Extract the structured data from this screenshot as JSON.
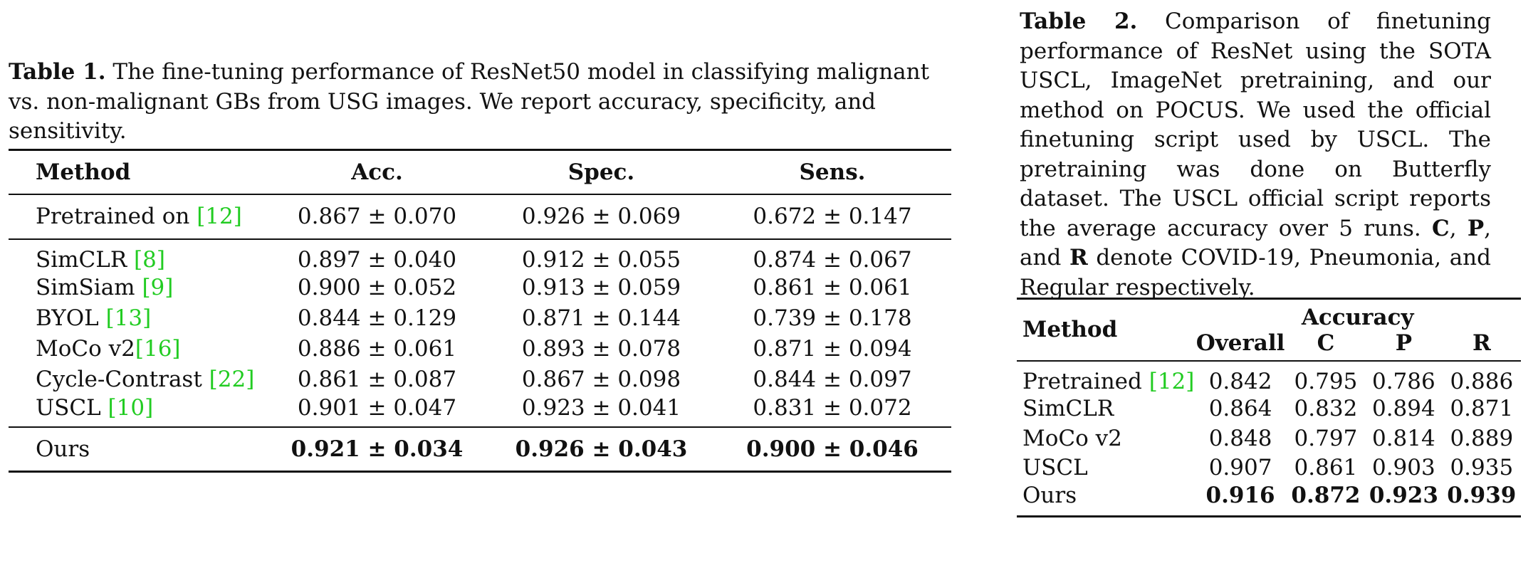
{
  "table1": {
    "caption": {
      "label": "Table 1.",
      "text": "The fine-tuning performance of ResNet50 model in classifying malignant vs. non-malignant GBs from USG images. We report accuracy, specificity, and sensitivity."
    },
    "headers": [
      "Method",
      "Acc.",
      "Spec.",
      "Sens."
    ],
    "pretrained": {
      "method": "Pretrained on ",
      "cite": "[12]",
      "values": [
        "0.867 ± 0.070",
        "0.926 ± 0.069",
        "0.672 ± 0.147"
      ]
    },
    "rows": [
      {
        "method": "SimCLR ",
        "cite": "[8]",
        "values": [
          "0.897 ± 0.040",
          "0.912 ± 0.055",
          "0.874 ± 0.067"
        ]
      },
      {
        "method": "SimSiam ",
        "cite": "[9]",
        "values": [
          "0.900 ± 0.052",
          "0.913 ± 0.059",
          "0.861 ± 0.061"
        ]
      },
      {
        "method": "BYOL ",
        "cite": "[13]",
        "values": [
          "0.844 ± 0.129",
          "0.871 ± 0.144",
          "0.739 ± 0.178"
        ]
      },
      {
        "method": "MoCo v2",
        "cite": "[16]",
        "values": [
          "0.886 ± 0.061",
          "0.893 ± 0.078",
          "0.871 ± 0.094"
        ]
      },
      {
        "method": "Cycle-Contrast ",
        "cite": "[22]",
        "values": [
          "0.861 ± 0.087",
          "0.867 ± 0.098",
          "0.844 ± 0.097"
        ]
      },
      {
        "method": "USCL ",
        "cite": "[10]",
        "values": [
          "0.901 ± 0.047",
          "0.923 ± 0.041",
          "0.831 ± 0.072"
        ]
      }
    ],
    "ours": {
      "method": "Ours",
      "values": [
        "0.921 ± 0.034",
        "0.926 ± 0.043",
        "0.900 ± 0.046"
      ]
    }
  },
  "table2": {
    "caption": {
      "label": "Table 2.",
      "part1": "Comparison of finetuning performance of ResNet using the SOTA USCL, ImageNet pretraining, and our method on POCUS. We used the official finetuning script used by USCL. The pretraining was done on Butterfly dataset. The USCL official script reports the average accuracy over 5 runs.",
      "c": "C",
      "sep1": ", ",
      "p": "P",
      "sep2": ", and ",
      "r": "R",
      "part2": " denote COVID-19, Pneumonia, and Regular respectively."
    },
    "header_method": "Method",
    "header_group": "Accuracy",
    "subheaders": [
      "Overall",
      "C",
      "P",
      "R"
    ],
    "rows": [
      {
        "method": "Pretrained ",
        "cite": "[12]",
        "values": [
          "0.842",
          "0.795",
          "0.786",
          "0.886"
        ]
      },
      {
        "method": "SimCLR",
        "cite": "",
        "values": [
          "0.864",
          "0.832",
          "0.894",
          "0.871"
        ]
      },
      {
        "method": "MoCo v2",
        "cite": "",
        "values": [
          "0.848",
          "0.797",
          "0.814",
          "0.889"
        ]
      },
      {
        "method": "USCL",
        "cite": "",
        "values": [
          "0.907",
          "0.861",
          "0.903",
          "0.935"
        ]
      }
    ],
    "ours": {
      "method": "Ours",
      "values": [
        "0.916",
        "0.872",
        "0.923",
        "0.939"
      ]
    }
  }
}
